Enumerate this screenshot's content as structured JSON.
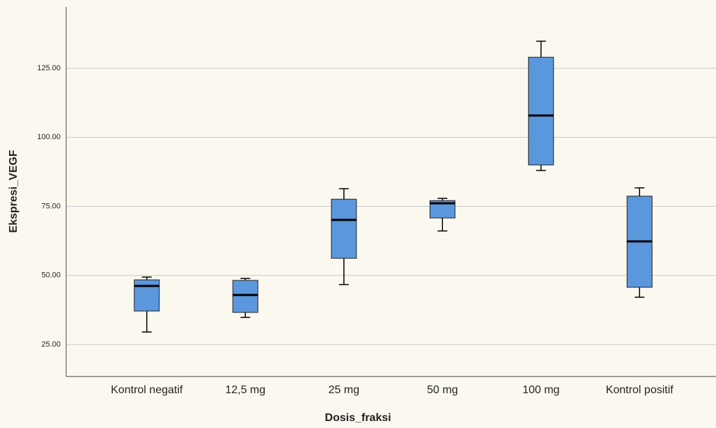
{
  "chart_data": {
    "type": "box",
    "x_label": "Dosis_fraksi",
    "y_label": "Ekspresi_VEGF",
    "categories": [
      "Kontrol negatif",
      "12,5 mg",
      "25 mg",
      "50 mg",
      "100 mg",
      "Kontrol positif"
    ],
    "boxes": [
      {
        "min": 29.5,
        "q1": 37.1,
        "median": 46.2,
        "q3": 48.4,
        "max": 49.4
      },
      {
        "min": 34.8,
        "q1": 36.6,
        "median": 42.9,
        "q3": 48.2,
        "max": 48.9
      },
      {
        "min": 46.7,
        "q1": 56.2,
        "median": 70.1,
        "q3": 77.6,
        "max": 81.4
      },
      {
        "min": 66.1,
        "q1": 70.8,
        "median": 76.1,
        "q3": 77.1,
        "max": 77.9
      },
      {
        "min": 88.0,
        "q1": 90.0,
        "median": 107.9,
        "q3": 129.0,
        "max": 134.8
      },
      {
        "min": 42.1,
        "q1": 45.7,
        "median": 62.3,
        "q3": 78.7,
        "max": 81.7
      }
    ],
    "color": "#5b97dc",
    "ylim": [
      13.4,
      147.2
    ],
    "yticks": [
      {
        "value": 25,
        "label": "25.00"
      },
      {
        "value": 50,
        "label": "50.00"
      },
      {
        "value": 75,
        "label": "75.00"
      },
      {
        "value": 100,
        "label": "100.00"
      },
      {
        "value": 125,
        "label": "125.00"
      }
    ],
    "grid": true
  }
}
